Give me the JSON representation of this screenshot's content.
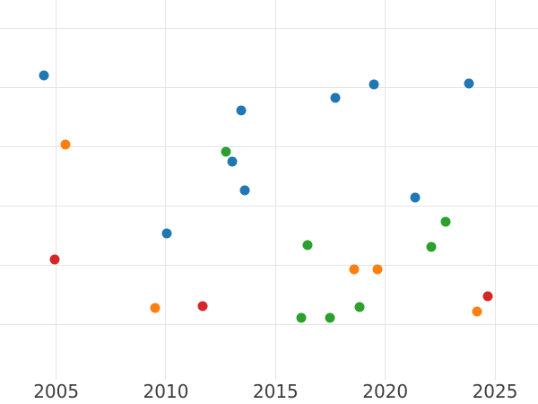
{
  "chart_data": {
    "type": "scatter",
    "title": "",
    "xlabel": "",
    "ylabel": "",
    "grid": true,
    "legend": false,
    "x_ticks": [
      2005,
      2010,
      2015,
      2020,
      2025
    ],
    "x_tick_labels": [
      "2005",
      "2010",
      "2015",
      "2020",
      "2025"
    ],
    "y_tick_labels": [],
    "x_range": [
      2002.44,
      2026.96
    ],
    "y_range": [
      0.06,
      6.48
    ],
    "y_gridlines": [
      1,
      2,
      3,
      4,
      5,
      6
    ],
    "marker_diameter_px": 11,
    "series": [
      {
        "name": "blue",
        "color": "#1f77b4",
        "points": [
          {
            "x": 2004.44,
            "y": 5.21
          },
          {
            "x": 2010.04,
            "y": 2.53
          },
          {
            "x": 2013.02,
            "y": 3.75
          },
          {
            "x": 2013.42,
            "y": 4.62
          },
          {
            "x": 2013.61,
            "y": 3.27
          },
          {
            "x": 2017.72,
            "y": 4.82
          },
          {
            "x": 2019.47,
            "y": 5.05
          },
          {
            "x": 2021.35,
            "y": 3.14
          },
          {
            "x": 2023.8,
            "y": 5.07
          }
        ]
      },
      {
        "name": "orange",
        "color": "#ff7f0e",
        "points": [
          {
            "x": 2005.42,
            "y": 4.04
          },
          {
            "x": 2009.52,
            "y": 1.27
          },
          {
            "x": 2018.57,
            "y": 1.92
          },
          {
            "x": 2019.65,
            "y": 1.92
          },
          {
            "x": 2024.17,
            "y": 1.21
          }
        ]
      },
      {
        "name": "green",
        "color": "#2ca02c",
        "points": [
          {
            "x": 2012.72,
            "y": 3.91
          },
          {
            "x": 2016.16,
            "y": 1.11
          },
          {
            "x": 2016.47,
            "y": 2.33
          },
          {
            "x": 2017.49,
            "y": 1.11
          },
          {
            "x": 2018.81,
            "y": 1.29
          },
          {
            "x": 2022.1,
            "y": 2.3
          },
          {
            "x": 2022.74,
            "y": 2.73
          }
        ]
      },
      {
        "name": "red",
        "color": "#d62728",
        "points": [
          {
            "x": 2004.93,
            "y": 2.09
          },
          {
            "x": 2011.67,
            "y": 1.3
          },
          {
            "x": 2024.69,
            "y": 1.47
          }
        ]
      }
    ]
  },
  "style": {
    "background": "#ffffff",
    "grid_color": "#e5e5e5",
    "tick_label_color": "#3d3d3d"
  }
}
